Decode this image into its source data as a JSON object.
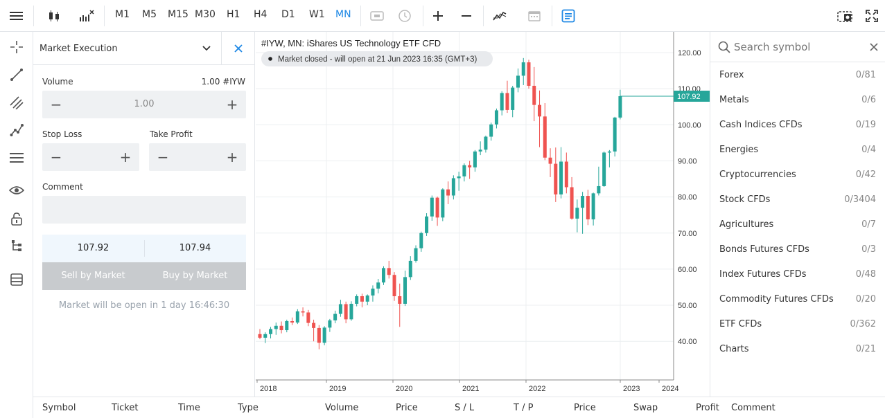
{
  "toolbar": {
    "timeframes": [
      "M1",
      "M5",
      "M15",
      "M30",
      "H1",
      "H4",
      "D1",
      "W1",
      "MN"
    ],
    "active_timeframe": "MN"
  },
  "order": {
    "execution_type": "Market Execution",
    "volume_label": "Volume",
    "volume_symbol": "1.00 #IYW",
    "volume_value": "1.00",
    "stop_loss_label": "Stop Loss",
    "take_profit_label": "Take Profit",
    "comment_label": "Comment",
    "bid": "107.92",
    "ask": "107.94",
    "sell_label": "Sell by Market",
    "buy_label": "Buy by Market",
    "market_note": "Market will be open in 1 day 16:46:30"
  },
  "chart": {
    "title": "#IYW, MN: iShares US Technology ETF CFD",
    "status": "Market closed - will open at 21 Jun 2023 16:35 (GMT+3)",
    "current_price": "107.92",
    "colors": {
      "up": "#26a69a",
      "down": "#ef5350",
      "grid": "#eceff1"
    }
  },
  "chart_data": {
    "type": "candlestick",
    "title": "#IYW, MN: iShares US Technology ETF CFD",
    "ylim": [
      32,
      127
    ],
    "y_ticks": [
      "40.00",
      "50.00",
      "60.00",
      "70.00",
      "80.00",
      "90.00",
      "100.00",
      "110.00",
      "120.00"
    ],
    "x_ticks": [
      "2018",
      "2019",
      "2020",
      "2021",
      "2022",
      "2023",
      "2024"
    ],
    "last_price": 107.92,
    "candles": [
      [
        42.0,
        43.4,
        40.6,
        41.0
      ],
      [
        41.0,
        42.5,
        39.5,
        42.0
      ],
      [
        42.0,
        44.0,
        40.8,
        43.4
      ],
      [
        43.4,
        45.2,
        41.8,
        44.3
      ],
      [
        44.3,
        45.5,
        42.2,
        43.1
      ],
      [
        43.1,
        46.0,
        42.5,
        45.6
      ],
      [
        45.6,
        46.6,
        44.5,
        45.2
      ],
      [
        45.2,
        48.9,
        44.8,
        48.3
      ],
      [
        48.3,
        49.4,
        46.9,
        48.0
      ],
      [
        48.0,
        48.7,
        44.2,
        45.1
      ],
      [
        45.1,
        46.0,
        40.0,
        43.7
      ],
      [
        43.7,
        44.5,
        37.8,
        39.6
      ],
      [
        39.6,
        44.2,
        38.9,
        43.8
      ],
      [
        43.8,
        46.2,
        42.6,
        45.8
      ],
      [
        45.8,
        48.5,
        45.0,
        47.6
      ],
      [
        47.6,
        51.5,
        46.8,
        50.3
      ],
      [
        50.3,
        51.0,
        45.0,
        46.1
      ],
      [
        46.1,
        51.1,
        45.7,
        50.4
      ],
      [
        50.4,
        53.0,
        49.7,
        52.5
      ],
      [
        52.5,
        53.2,
        49.4,
        51.0
      ],
      [
        51.0,
        53.0,
        50.0,
        52.7
      ],
      [
        52.7,
        55.5,
        51.0,
        54.6
      ],
      [
        54.6,
        57.3,
        53.3,
        56.3
      ],
      [
        56.3,
        60.8,
        55.6,
        60.3
      ],
      [
        60.3,
        62.3,
        57.4,
        58.4
      ],
      [
        58.4,
        59.2,
        51.2,
        52.5
      ],
      [
        52.5,
        56.0,
        44.0,
        50.4
      ],
      [
        50.4,
        59.6,
        49.8,
        57.8
      ],
      [
        57.8,
        63.6,
        57.0,
        62.3
      ],
      [
        62.3,
        66.6,
        61.8,
        65.8
      ],
      [
        65.8,
        70.4,
        64.8,
        70.0
      ],
      [
        70.0,
        75.5,
        69.2,
        74.6
      ],
      [
        74.6,
        80.4,
        73.4,
        79.8
      ],
      [
        79.8,
        80.1,
        72.0,
        74.3
      ],
      [
        74.3,
        82.4,
        73.3,
        82.1
      ],
      [
        82.1,
        84.3,
        78.0,
        80.4
      ],
      [
        80.4,
        86.0,
        79.3,
        85.2
      ],
      [
        85.2,
        87.0,
        81.7,
        85.7
      ],
      [
        85.7,
        89.3,
        84.3,
        88.8
      ],
      [
        88.8,
        90.0,
        85.0,
        88.2
      ],
      [
        88.2,
        93.0,
        87.0,
        92.6
      ],
      [
        92.6,
        95.4,
        91.6,
        93.1
      ],
      [
        93.1,
        97.0,
        92.3,
        96.7
      ],
      [
        96.7,
        100.6,
        95.6,
        100.1
      ],
      [
        100.1,
        104.5,
        99.0,
        104.0
      ],
      [
        104.0,
        109.3,
        102.6,
        108.8
      ],
      [
        108.8,
        112.2,
        103.3,
        104.1
      ],
      [
        104.1,
        110.8,
        102.1,
        110.3
      ],
      [
        110.3,
        115.6,
        109.0,
        113.6
      ],
      [
        113.6,
        118.5,
        111.0,
        117.3
      ],
      [
        117.3,
        118.0,
        110.0,
        110.8
      ],
      [
        110.8,
        116.0,
        101.0,
        105.5
      ],
      [
        105.5,
        109.5,
        93.8,
        102.3
      ],
      [
        102.3,
        106.0,
        90.2,
        90.9
      ],
      [
        90.9,
        93.5,
        85.5,
        89.2
      ],
      [
        89.2,
        93.7,
        78.6,
        80.7
      ],
      [
        80.7,
        93.8,
        79.6,
        89.8
      ],
      [
        89.8,
        92.3,
        81.0,
        82.7
      ],
      [
        82.7,
        85.5,
        73.7,
        74.0
      ],
      [
        74.0,
        79.3,
        70.2,
        77.0
      ],
      [
        77.0,
        81.4,
        69.8,
        80.3
      ],
      [
        80.3,
        82.0,
        72.2,
        73.8
      ],
      [
        73.8,
        81.2,
        72.1,
        81.0
      ],
      [
        81.0,
        88.4,
        80.4,
        83.0
      ],
      [
        83.0,
        92.6,
        82.8,
        92.3
      ],
      [
        92.3,
        93.0,
        88.2,
        92.6
      ],
      [
        92.6,
        102.2,
        91.2,
        102.0
      ],
      [
        102.0,
        109.7,
        101.5,
        107.92
      ]
    ]
  },
  "watchlist": {
    "search_placeholder": "Search symbol",
    "groups": [
      {
        "name": "Forex",
        "count": "0/81"
      },
      {
        "name": "Metals",
        "count": "0/6"
      },
      {
        "name": "Cash Indices CFDs",
        "count": "0/19"
      },
      {
        "name": "Energies",
        "count": "0/4"
      },
      {
        "name": "Cryptocurrencies",
        "count": "0/42"
      },
      {
        "name": "Stock CFDs",
        "count": "0/3404"
      },
      {
        "name": "Agricultures",
        "count": "0/7"
      },
      {
        "name": "Bonds Futures CFDs",
        "count": "0/3"
      },
      {
        "name": "Index Futures CFDs",
        "count": "0/48"
      },
      {
        "name": "Commodity Futures CFDs",
        "count": "0/20"
      },
      {
        "name": "ETF CFDs",
        "count": "0/362"
      },
      {
        "name": "Charts",
        "count": "0/21"
      }
    ]
  },
  "table": {
    "columns": [
      "Symbol",
      "Ticket",
      "Time",
      "Type",
      "Volume",
      "Price",
      "S / L",
      "T / P",
      "Price",
      "Swap",
      "Profit",
      "Comment"
    ]
  }
}
